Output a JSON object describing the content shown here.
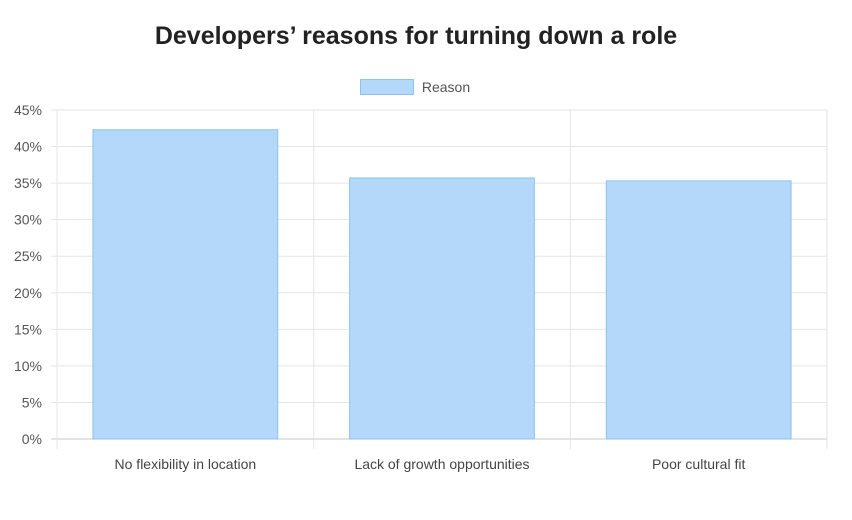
{
  "chart_data": {
    "type": "bar",
    "title": "Developers’ reasons for turning down a role",
    "xlabel": "",
    "ylabel": "",
    "categories": [
      "No flexibility in location",
      "Lack of growth opportunities",
      "Poor cultural fit"
    ],
    "series": [
      {
        "name": "Reason",
        "values": [
          42.3,
          35.7,
          35.3
        ]
      }
    ],
    "ylim": [
      0,
      45
    ],
    "yticks": [
      "0%",
      "5%",
      "10%",
      "15%",
      "20%",
      "25%",
      "30%",
      "35%",
      "40%",
      "45%"
    ],
    "grid": true,
    "legend_position": "top-center",
    "colors": {
      "bar_fill": "#b3d8f9",
      "bar_border": "#8cc3ec",
      "grid": "#e5e5e5"
    }
  }
}
